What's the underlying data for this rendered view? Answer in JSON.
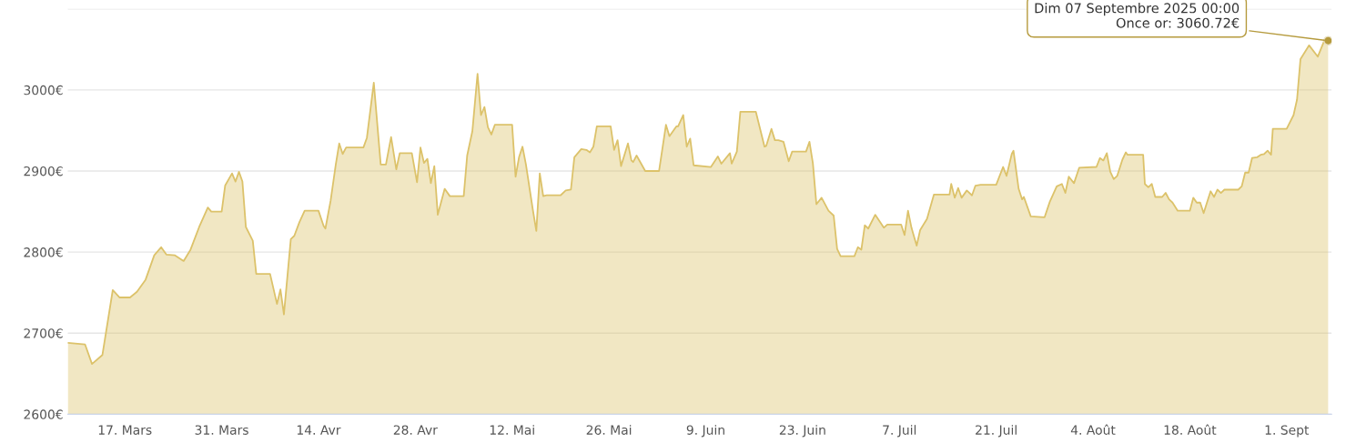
{
  "chart_data": {
    "type": "area",
    "x": [
      "2025-03-08T18:00",
      "2025-03-11T06:00",
      "2025-03-12T06:00",
      "2025-03-13T18:00",
      "2025-03-15T06:00",
      "2025-03-16T06:00",
      "2025-03-17T18:00",
      "2025-03-18T18:00",
      "2025-03-20",
      "2025-03-21T06:00",
      "2025-03-22T06:00",
      "2025-03-23",
      "2025-03-24T06:00",
      "2025-03-25T12:00",
      "2025-03-26T12:00",
      "2025-03-27T18:00",
      "2025-03-29",
      "2025-03-29T12:00",
      "2025-03-31",
      "2025-03-31T12:00",
      "2025-04-01T12:00",
      "2025-04-02",
      "2025-04-02T12:00",
      "2025-04-03",
      "2025-04-03T12:00",
      "2025-04-04T12:00",
      "2025-04-05",
      "2025-04-07",
      "2025-04-08",
      "2025-04-08T12:00",
      "2025-04-09",
      "2025-04-10",
      "2025-04-10T12:00",
      "2025-04-11T06:00",
      "2025-04-12",
      "2025-04-14",
      "2025-04-14T18:00",
      "2025-04-15",
      "2025-04-15T18:00",
      "2025-04-16T12:00",
      "2025-04-17",
      "2025-04-17T12:00",
      "2025-04-18",
      "2025-04-20T12:00",
      "2025-04-21",
      "2025-04-22",
      "2025-04-23",
      "2025-04-23T18:00",
      "2025-04-24T12:00",
      "2025-04-25T06:00",
      "2025-04-25T18:00",
      "2025-04-27T12:00",
      "2025-04-28T06:00",
      "2025-04-28T18:00",
      "2025-04-29T06:00",
      "2025-04-29T18:00",
      "2025-04-30T06:00",
      "2025-04-30T18:00",
      "2025-05-01T06:00",
      "2025-05-02T06:00",
      "2025-05-03",
      "2025-05-05",
      "2025-05-05T12:00",
      "2025-05-06T06:00",
      "2025-05-07",
      "2025-05-07T12:00",
      "2025-05-08",
      "2025-05-08T12:00",
      "2025-05-09",
      "2025-05-09T12:00",
      "2025-05-12",
      "2025-05-12T12:00",
      "2025-05-13",
      "2025-05-13T12:00",
      "2025-05-14",
      "2025-05-15",
      "2025-05-15T12:00",
      "2025-05-16",
      "2025-05-16T12:00",
      "2025-05-17",
      "2025-05-19",
      "2025-05-19T18:00",
      "2025-05-20T12:00",
      "2025-05-21",
      "2025-05-22",
      "2025-05-22T18:00",
      "2025-05-23T06:00",
      "2025-05-23T18:00",
      "2025-05-24T06:00",
      "2025-05-26T06:00",
      "2025-05-26T18:00",
      "2025-05-27T06:00",
      "2025-05-27T18:00",
      "2025-05-28T18:00",
      "2025-05-29T06:00",
      "2025-05-29T12:00",
      "2025-05-30",
      "2025-05-31T06:00",
      "2025-06-02T06:00",
      "2025-06-03T06:00",
      "2025-06-03T18:00",
      "2025-06-04T18:00",
      "2025-06-05",
      "2025-06-05T18:00",
      "2025-06-06T06:00",
      "2025-06-06T18:00",
      "2025-06-07T06:00",
      "2025-06-09T18:00",
      "2025-06-10T18:00",
      "2025-06-11T06:00",
      "2025-06-12T12:00",
      "2025-06-12T18:00",
      "2025-06-13T12:00",
      "2025-06-14",
      "2025-06-16T06:00",
      "2025-06-17T12:00",
      "2025-06-17T18:00",
      "2025-06-18T12:00",
      "2025-06-19",
      "2025-06-19T12:00",
      "2025-06-20T06:00",
      "2025-06-21",
      "2025-06-21T12:00",
      "2025-06-23T12:00",
      "2025-06-24",
      "2025-06-24T12:00",
      "2025-06-25",
      "2025-06-25T18:00",
      "2025-06-26T18:00",
      "2025-06-27T12:00",
      "2025-06-28",
      "2025-06-28T12:00",
      "2025-06-30T12:00",
      "2025-07-01",
      "2025-07-01T12:00",
      "2025-07-02",
      "2025-07-02T12:00",
      "2025-07-03T12:00",
      "2025-07-04T18:00",
      "2025-07-05T06:00",
      "2025-07-07T06:00",
      "2025-07-07T18:00",
      "2025-07-08T06:00",
      "2025-07-08T18:00",
      "2025-07-09T12:00",
      "2025-07-10",
      "2025-07-11",
      "2025-07-12",
      "2025-07-14T06:00",
      "2025-07-14T12:00",
      "2025-07-15",
      "2025-07-15T12:00",
      "2025-07-16",
      "2025-07-16T18:00",
      "2025-07-17T12:00",
      "2025-07-18",
      "2025-07-18T18:00",
      "2025-07-21",
      "2025-07-22",
      "2025-07-22T12:00",
      "2025-07-23T06:00",
      "2025-07-23T12:00",
      "2025-07-24T06:00",
      "2025-07-24T18:00",
      "2025-07-25",
      "2025-07-26",
      "2025-07-28",
      "2025-07-28T18:00",
      "2025-07-29T18:00",
      "2025-07-30T12:00",
      "2025-07-31",
      "2025-07-31T12:00",
      "2025-08-01T06:00",
      "2025-08-02",
      "2025-08-04T12:00",
      "2025-08-05",
      "2025-08-05T12:00",
      "2025-08-06",
      "2025-08-06T12:00",
      "2025-08-07",
      "2025-08-07T12:00",
      "2025-08-08T06:00",
      "2025-08-08T18:00",
      "2025-08-09",
      "2025-08-11T06:00",
      "2025-08-11T12:00",
      "2025-08-12",
      "2025-08-12T12:00",
      "2025-08-13",
      "2025-08-14",
      "2025-08-14T12:00",
      "2025-08-15",
      "2025-08-15T12:00",
      "2025-08-16T06:00",
      "2025-08-18",
      "2025-08-18T12:00",
      "2025-08-19",
      "2025-08-19T12:00",
      "2025-08-20",
      "2025-08-21",
      "2025-08-21T12:00",
      "2025-08-22",
      "2025-08-22T12:00",
      "2025-08-23",
      "2025-08-25",
      "2025-08-25T12:00",
      "2025-08-26",
      "2025-08-26T12:00",
      "2025-08-27",
      "2025-08-27T18:00",
      "2025-08-28T06:00",
      "2025-08-28T18:00",
      "2025-08-29T06:00",
      "2025-08-29T18:00",
      "2025-08-30",
      "2025-09-01",
      "2025-09-02",
      "2025-09-02T12:00",
      "2025-09-03",
      "2025-09-04T06:00",
      "2025-09-05T12:00",
      "2025-09-06T12:00",
      "2025-09-07"
    ],
    "series": [
      {
        "color": "#dcc26a",
        "values": [
          2688,
          2686,
          2662,
          2673,
          2753,
          2744,
          2744,
          2751,
          2766,
          2796,
          2806,
          2797,
          2796,
          2789,
          2803,
          2831,
          2855,
          2850,
          2850,
          2882,
          2897,
          2887,
          2899,
          2887,
          2831,
          2814,
          2773,
          2773,
          2736,
          2754,
          2723,
          2816,
          2820,
          2837,
          2851,
          2851,
          2832,
          2829,
          2863,
          2908,
          2934,
          2921,
          2929,
          2929,
          2941,
          3009,
          2908,
          2908,
          2942,
          2902,
          2922,
          2922,
          2886,
          2929,
          2910,
          2915,
          2885,
          2906,
          2846,
          2878,
          2869,
          2869,
          2919,
          2949,
          3020,
          2969,
          2979,
          2954,
          2945,
          2957,
          2957,
          2893,
          2917,
          2930,
          2908,
          2852,
          2826,
          2897,
          2869,
          2870,
          2870,
          2876,
          2877,
          2917,
          2927,
          2926,
          2923,
          2930,
          2955,
          2955,
          2926,
          2938,
          2906,
          2934,
          2913,
          2911,
          2919,
          2900,
          2900,
          2957,
          2943,
          2955,
          2955,
          2969,
          2930,
          2940,
          2907,
          2905,
          2918,
          2909,
          2922,
          2909,
          2924,
          2973,
          2973,
          2930,
          2931,
          2952,
          2938,
          2938,
          2936,
          2912,
          2924,
          2924,
          2936,
          2909,
          2859,
          2867,
          2851,
          2845,
          2804,
          2795,
          2795,
          2806,
          2803,
          2833,
          2829,
          2846,
          2830,
          2834,
          2834,
          2821,
          2851,
          2830,
          2808,
          2827,
          2841,
          2871,
          2871,
          2884,
          2867,
          2879,
          2867,
          2876,
          2870,
          2882,
          2883,
          2883,
          2905,
          2894,
          2921,
          2925,
          2878,
          2865,
          2868,
          2844,
          2843,
          2862,
          2881,
          2884,
          2873,
          2893,
          2885,
          2904,
          2905,
          2916,
          2913,
          2922,
          2899,
          2890,
          2894,
          2914,
          2923,
          2920,
          2920,
          2884,
          2880,
          2884,
          2868,
          2868,
          2873,
          2865,
          2861,
          2851,
          2851,
          2867,
          2861,
          2861,
          2848,
          2875,
          2868,
          2877,
          2873,
          2877,
          2877,
          2881,
          2898,
          2898,
          2916,
          2917,
          2920,
          2921,
          2925,
          2920,
          2952,
          2952,
          2969,
          2988,
          3038,
          3055,
          3041,
          3062,
          3060.72
        ]
      }
    ],
    "xlim": [
      "2025-03-08T18:00",
      "2025-09-07T12:00"
    ],
    "xticks": [
      {
        "value": "2025-03-17",
        "label": "17. Mars"
      },
      {
        "value": "2025-03-31",
        "label": "31. Mars"
      },
      {
        "value": "2025-04-14",
        "label": "14. Avr"
      },
      {
        "value": "2025-04-28",
        "label": "28. Avr"
      },
      {
        "value": "2025-05-12",
        "label": "12. Mai"
      },
      {
        "value": "2025-05-26",
        "label": "26. Mai"
      },
      {
        "value": "2025-06-09",
        "label": "9. Juin"
      },
      {
        "value": "2025-06-23",
        "label": "23. Juin"
      },
      {
        "value": "2025-07-07",
        "label": "7. Juil"
      },
      {
        "value": "2025-07-21",
        "label": "21. Juil"
      },
      {
        "value": "2025-08-04",
        "label": "4. Août"
      },
      {
        "value": "2025-08-18",
        "label": "18. Août"
      },
      {
        "value": "2025-09-01",
        "label": "1. Sept"
      }
    ],
    "ylim": [
      2600,
      3100
    ],
    "yticks": [
      {
        "value": 2600,
        "label": "2600€"
      },
      {
        "value": 2700,
        "label": "2700€"
      },
      {
        "value": 2800,
        "label": "2800€"
      },
      {
        "value": 2900,
        "label": "2900€"
      },
      {
        "value": 3000,
        "label": "3000€"
      },
      {
        "value": 3100,
        "label": null
      }
    ],
    "grid": "y",
    "annotations": [
      {
        "text": "Dim 07 Septembre 2025 00:00\nOnce or: 3060.72€",
        "x": "2025-09-07",
        "y": 3060.72
      }
    ]
  }
}
